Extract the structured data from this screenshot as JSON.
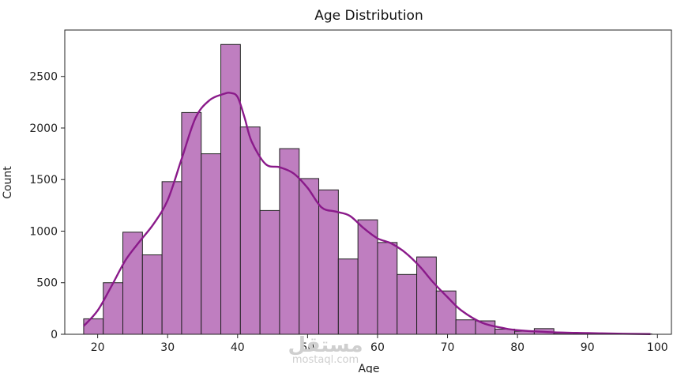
{
  "chart_data": {
    "type": "bar",
    "title": "Age Distribution",
    "xlabel": "Age",
    "ylabel": "Count",
    "xlim": [
      15.3,
      102
    ],
    "ylim": [
      0,
      2950
    ],
    "xticks": [
      "20",
      "30",
      "40",
      "50",
      "60",
      "70",
      "80",
      "90",
      "100"
    ],
    "yticks": [
      "0",
      "500",
      "1000",
      "1500",
      "2000",
      "2500"
    ],
    "grid": false,
    "legend": "none",
    "bar_color": "#bf7ec0",
    "edge_color": "#222222",
    "kde_color": "#8a1a8a",
    "bins": [
      {
        "x0": 18.0,
        "x1": 20.8,
        "count": 150
      },
      {
        "x0": 20.8,
        "x1": 23.6,
        "count": 500
      },
      {
        "x0": 23.6,
        "x1": 26.4,
        "count": 990
      },
      {
        "x0": 26.4,
        "x1": 29.2,
        "count": 770
      },
      {
        "x0": 29.2,
        "x1": 32.0,
        "count": 1480
      },
      {
        "x0": 32.0,
        "x1": 34.8,
        "count": 2150
      },
      {
        "x0": 34.8,
        "x1": 37.6,
        "count": 1750
      },
      {
        "x0": 37.6,
        "x1": 40.4,
        "count": 2810
      },
      {
        "x0": 40.4,
        "x1": 43.2,
        "count": 2010
      },
      {
        "x0": 43.2,
        "x1": 46.0,
        "count": 1200
      },
      {
        "x0": 46.0,
        "x1": 48.8,
        "count": 1800
      },
      {
        "x0": 48.8,
        "x1": 51.6,
        "count": 1510
      },
      {
        "x0": 51.6,
        "x1": 54.4,
        "count": 1400
      },
      {
        "x0": 54.4,
        "x1": 57.2,
        "count": 730
      },
      {
        "x0": 57.2,
        "x1": 60.0,
        "count": 1110
      },
      {
        "x0": 60.0,
        "x1": 62.8,
        "count": 890
      },
      {
        "x0": 62.8,
        "x1": 65.6,
        "count": 580
      },
      {
        "x0": 65.6,
        "x1": 68.4,
        "count": 750
      },
      {
        "x0": 68.4,
        "x1": 71.2,
        "count": 420
      },
      {
        "x0": 71.2,
        "x1": 74.0,
        "count": 140
      },
      {
        "x0": 74.0,
        "x1": 76.8,
        "count": 130
      },
      {
        "x0": 76.8,
        "x1": 79.6,
        "count": 50
      },
      {
        "x0": 79.6,
        "x1": 82.4,
        "count": 30
      },
      {
        "x0": 82.4,
        "x1": 85.2,
        "count": 55
      },
      {
        "x0": 85.2,
        "x1": 88.0,
        "count": 10
      },
      {
        "x0": 88.0,
        "x1": 90.8,
        "count": 8
      },
      {
        "x0": 90.8,
        "x1": 93.6,
        "count": 5
      },
      {
        "x0": 93.6,
        "x1": 96.4,
        "count": 4
      },
      {
        "x0": 96.4,
        "x1": 99.2,
        "count": 3
      }
    ],
    "kde": {
      "x": [
        18,
        20,
        22,
        24,
        26,
        28,
        30,
        32,
        34,
        36,
        38,
        39,
        40,
        41,
        42,
        44,
        46,
        48,
        50,
        52,
        54,
        56,
        58,
        60,
        62,
        64,
        66,
        68,
        70,
        72,
        75,
        78,
        80,
        85,
        90,
        95,
        99
      ],
      "y": [
        80,
        230,
        470,
        720,
        900,
        1070,
        1300,
        1700,
        2100,
        2270,
        2330,
        2340,
        2300,
        2100,
        1870,
        1650,
        1620,
        1560,
        1420,
        1230,
        1190,
        1150,
        1030,
        930,
        880,
        790,
        660,
        500,
        360,
        230,
        110,
        60,
        40,
        20,
        12,
        5,
        2
      ]
    }
  },
  "watermark": {
    "arabic": "مستقل",
    "site": "mostaql.com"
  }
}
